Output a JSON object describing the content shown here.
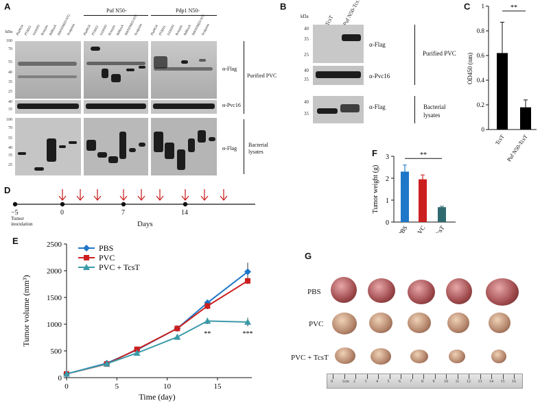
{
  "panel_labels": {
    "a": "A",
    "b": "B",
    "c": "C",
    "d": "D",
    "e": "E",
    "f": "F",
    "g": "G"
  },
  "panel_a": {
    "kda_label": "kDa",
    "group_headers": [
      "Puf N50-",
      "Pdp1 N50-"
    ],
    "lanes": [
      "Plu0924",
      "PTRH3",
      "SASSP2",
      "Rosepin",
      "RdReaA",
      "HdrSDM(D-NT)",
      "Scalpinin"
    ],
    "upper_markers": [
      "100",
      "70",
      "55",
      "40",
      "35",
      "25"
    ],
    "mid_markers": [
      "40",
      "35"
    ],
    "lower_markers": [
      "100",
      "70",
      "55",
      "40",
      "35",
      "25"
    ],
    "annot_flag_top": "α-Flag",
    "annot_pvc16": "α-Pvc16",
    "annot_flag_bottom": "α-Flag",
    "purified_label": "Purified  PVC",
    "bacterial_label_1": "Bacterial",
    "bacterial_label_2": "lysates"
  },
  "panel_b": {
    "kda_label": "kDa",
    "lanes": [
      "TcsT",
      "Puf N50-TcsT"
    ],
    "top_markers": [
      "40",
      "35",
      "25"
    ],
    "mid_markers": [
      "40",
      "35"
    ],
    "bottom_markers": [
      "40",
      "35"
    ],
    "annot_flag_top": "α-Flag",
    "annot_pvc16": "α-Pvc16",
    "annot_flag_bottom": "α-Flag",
    "purified_label": "Purified  PVC",
    "bacterial_label_1": "Bacterial",
    "bacterial_label_2": "lysates"
  },
  "panel_d": {
    "timepoints": [
      "−5",
      "0",
      "7",
      "14"
    ],
    "note_1": "Tumor",
    "note_2": "inoculation",
    "axis_label": "Days"
  },
  "panel_g": {
    "rows": [
      "PBS",
      "PVC",
      "PVC + TcsT"
    ],
    "ruler_digits": [
      "0",
      "1cm",
      "2",
      "3",
      "4",
      "5",
      "6",
      "7",
      "8",
      "9",
      "10",
      "11",
      "12",
      "13",
      "14",
      "15",
      "16"
    ]
  },
  "chart_data": [
    {
      "id": "C",
      "type": "bar",
      "categories": [
        "TcsT",
        "Puf N50-TcsT"
      ],
      "values": [
        0.62,
        0.18
      ],
      "errors": [
        0.25,
        0.06
      ],
      "ylabel": "OD450 (nm)",
      "ylim": [
        0,
        1
      ],
      "yticks": [
        "0",
        "0.2",
        "0.4",
        "0.6",
        "0.8",
        "1"
      ],
      "significance": "**",
      "color": "#000000"
    },
    {
      "id": "E",
      "type": "line",
      "x": [
        0,
        4,
        7,
        11,
        14,
        18
      ],
      "series": [
        {
          "name": "PBS",
          "values": [
            70,
            270,
            520,
            920,
            1400,
            1980
          ],
          "errors": [
            30,
            40,
            40,
            50,
            40,
            170
          ],
          "color": "#1f77c8",
          "marker": "diamond"
        },
        {
          "name": "PVC",
          "values": [
            70,
            255,
            530,
            920,
            1340,
            1810
          ],
          "errors": [
            30,
            40,
            40,
            50,
            60,
            60
          ],
          "color": "#cc1f1f",
          "marker": "square"
        },
        {
          "name": "PVC + TcsT",
          "values": [
            70,
            260,
            460,
            760,
            1060,
            1040
          ],
          "errors": [
            30,
            40,
            40,
            50,
            60,
            80
          ],
          "color": "#3a9aa8",
          "marker": "triangle"
        }
      ],
      "xlabel": "Time (day)",
      "ylabel": "Tumor volume (mm³)",
      "xlim": [
        0,
        18
      ],
      "ylim": [
        0,
        2500
      ],
      "xticks": [
        "0",
        "5",
        "10",
        "15"
      ],
      "yticks": [
        "0",
        "500",
        "1000",
        "1500",
        "2000",
        "2500"
      ],
      "annotations": [
        "**",
        "***"
      ]
    },
    {
      "id": "F",
      "type": "bar",
      "categories": [
        "PBS",
        "PVC",
        "PVC + TcsT"
      ],
      "values": [
        2.3,
        1.95,
        0.68
      ],
      "errors": [
        0.3,
        0.2,
        0.04
      ],
      "colors": [
        "#1f77c8",
        "#cc1f1f",
        "#2f6a70"
      ],
      "ylabel": "Tumor weight (g)",
      "ylim": [
        0,
        3
      ],
      "yticks": [
        "0",
        "1",
        "2",
        "3"
      ],
      "significance": "**"
    }
  ]
}
